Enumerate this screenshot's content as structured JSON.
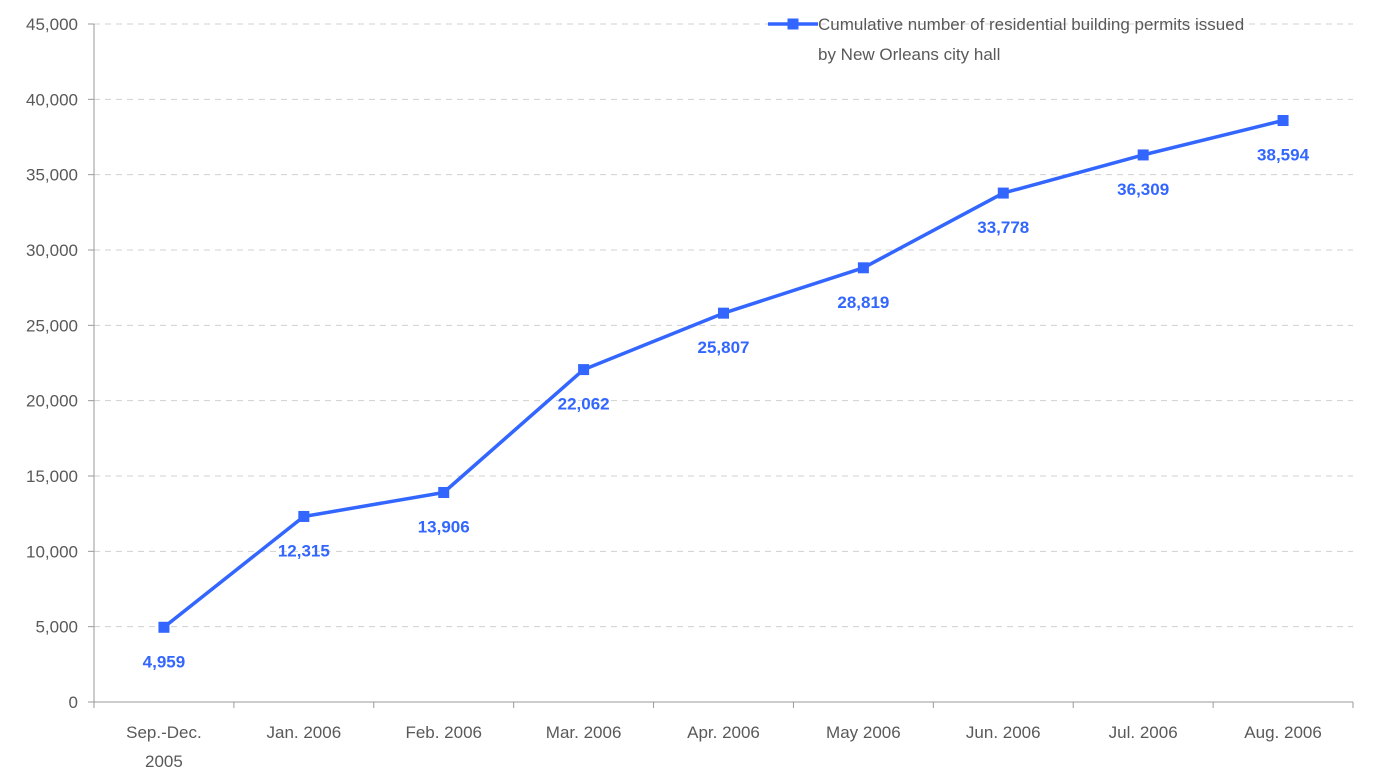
{
  "chart_data": {
    "type": "line",
    "categories": [
      [
        "Sep.-Dec.",
        "2005"
      ],
      [
        "Jan. 2006"
      ],
      [
        "Feb. 2006"
      ],
      [
        "Mar. 2006"
      ],
      [
        "Apr. 2006"
      ],
      [
        "May 2006"
      ],
      [
        "Jun. 2006"
      ],
      [
        "Jul. 2006"
      ],
      [
        "Aug. 2006"
      ]
    ],
    "series": [
      {
        "name": "Cumulative number of residential building permits issued by New Orleans city hall",
        "values": [
          4959,
          12315,
          13906,
          22062,
          25807,
          28819,
          33778,
          36309,
          38594
        ],
        "data_labels": [
          "4,959",
          "12,315",
          "13,906",
          "22,062",
          "25,807",
          "28,819",
          "33,778",
          "36,309",
          "38,594"
        ],
        "color": "#3366ff",
        "marker": "square"
      }
    ],
    "legend": {
      "lines": [
        "Cumulative number of residential building permits issued",
        "by New Orleans city hall"
      ],
      "placement": "top-right"
    },
    "y_ticks": [
      "0",
      "5,000",
      "10,000",
      "15,000",
      "20,000",
      "25,000",
      "30,000",
      "35,000",
      "40,000",
      "45,000"
    ],
    "ylim": [
      0,
      45000
    ],
    "y_step": 5000,
    "grid": true,
    "title": "",
    "xlabel": "",
    "ylabel": ""
  }
}
